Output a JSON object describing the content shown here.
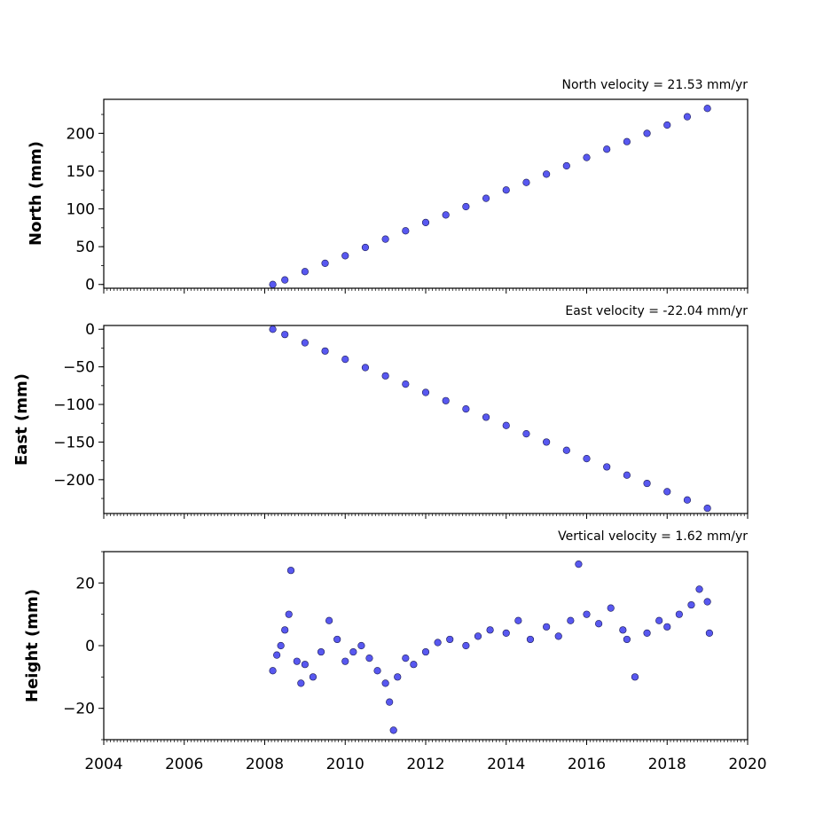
{
  "figure": {
    "x_tick_labels": [
      "2004",
      "2006",
      "2008",
      "2010",
      "2012",
      "2014",
      "2016",
      "2018",
      "2020"
    ]
  },
  "colors": {
    "marker_fill": "#5858f0",
    "marker_edge": "#1a1a55"
  },
  "chart_data": [
    {
      "type": "scatter",
      "title": "North velocity = 21.53 mm/yr",
      "ylabel": "North (mm)",
      "xlim": [
        2004,
        2020
      ],
      "ylim": [
        -5,
        245
      ],
      "y_ticks": [
        0,
        50,
        100,
        150,
        200
      ],
      "y_tick_labels": [
        "0",
        "50",
        "100",
        "150",
        "200"
      ],
      "series": [
        {
          "x": [
            2008.2,
            2008.5,
            2009.0,
            2009.5,
            2010.0,
            2010.5,
            2011.0,
            2011.5,
            2012.0,
            2012.5,
            2013.0,
            2013.5,
            2014.0,
            2014.5,
            2015.0,
            2015.5,
            2016.0,
            2016.5,
            2017.0,
            2017.5,
            2018.0,
            2018.5,
            2019.0
          ],
          "y": [
            0,
            6,
            17,
            28,
            38,
            49,
            60,
            71,
            82,
            92,
            103,
            114,
            125,
            135,
            146,
            157,
            168,
            179,
            189,
            200,
            211,
            222,
            233
          ]
        }
      ]
    },
    {
      "type": "scatter",
      "title": "East velocity = -22.04 mm/yr",
      "ylabel": "East (mm)",
      "xlim": [
        2004,
        2020
      ],
      "ylim": [
        -245,
        5
      ],
      "y_ticks": [
        0,
        -50,
        -100,
        -150,
        -200
      ],
      "y_tick_labels": [
        "0",
        "−50",
        "−100",
        "−150",
        "−200"
      ],
      "series": [
        {
          "x": [
            2008.2,
            2008.5,
            2009.0,
            2009.5,
            2010.0,
            2010.5,
            2011.0,
            2011.5,
            2012.0,
            2012.5,
            2013.0,
            2013.5,
            2014.0,
            2014.5,
            2015.0,
            2015.5,
            2016.0,
            2016.5,
            2017.0,
            2017.5,
            2018.0,
            2018.5,
            2019.0
          ],
          "y": [
            0,
            -7,
            -18,
            -29,
            -40,
            -51,
            -62,
            -73,
            -84,
            -95,
            -106,
            -117,
            -128,
            -139,
            -150,
            -161,
            -172,
            -183,
            -194,
            -205,
            -216,
            -227,
            -238
          ]
        }
      ]
    },
    {
      "type": "scatter",
      "title": "Vertical velocity = 1.62 mm/yr",
      "ylabel": "Height (mm)",
      "xlim": [
        2004,
        2020
      ],
      "ylim": [
        -30,
        30
      ],
      "y_ticks": [
        20,
        0,
        -20
      ],
      "y_tick_labels": [
        "20",
        "0",
        "−20"
      ],
      "series": [
        {
          "x": [
            2008.2,
            2008.3,
            2008.4,
            2008.5,
            2008.6,
            2008.65,
            2008.8,
            2008.9,
            2009.0,
            2009.2,
            2009.4,
            2009.6,
            2009.8,
            2010.0,
            2010.2,
            2010.4,
            2010.6,
            2010.8,
            2011.0,
            2011.1,
            2011.2,
            2011.3,
            2011.5,
            2011.7,
            2012.0,
            2012.3,
            2012.6,
            2013.0,
            2013.3,
            2013.6,
            2014.0,
            2014.3,
            2014.6,
            2015.0,
            2015.3,
            2015.6,
            2015.8,
            2016.0,
            2016.3,
            2016.6,
            2016.9,
            2017.0,
            2017.2,
            2017.5,
            2017.8,
            2018.0,
            2018.3,
            2018.6,
            2018.8,
            2019.0,
            2019.05
          ],
          "y": [
            -8,
            -3,
            0,
            5,
            10,
            24,
            -5,
            -12,
            -6,
            -10,
            -2,
            8,
            2,
            -5,
            -2,
            0,
            -4,
            -8,
            -12,
            -18,
            -27,
            -10,
            -4,
            -6,
            -2,
            1,
            2,
            0,
            3,
            5,
            4,
            8,
            2,
            6,
            3,
            8,
            26,
            10,
            7,
            12,
            5,
            2,
            -10,
            4,
            8,
            6,
            10,
            13,
            18,
            14,
            4
          ]
        }
      ]
    }
  ]
}
